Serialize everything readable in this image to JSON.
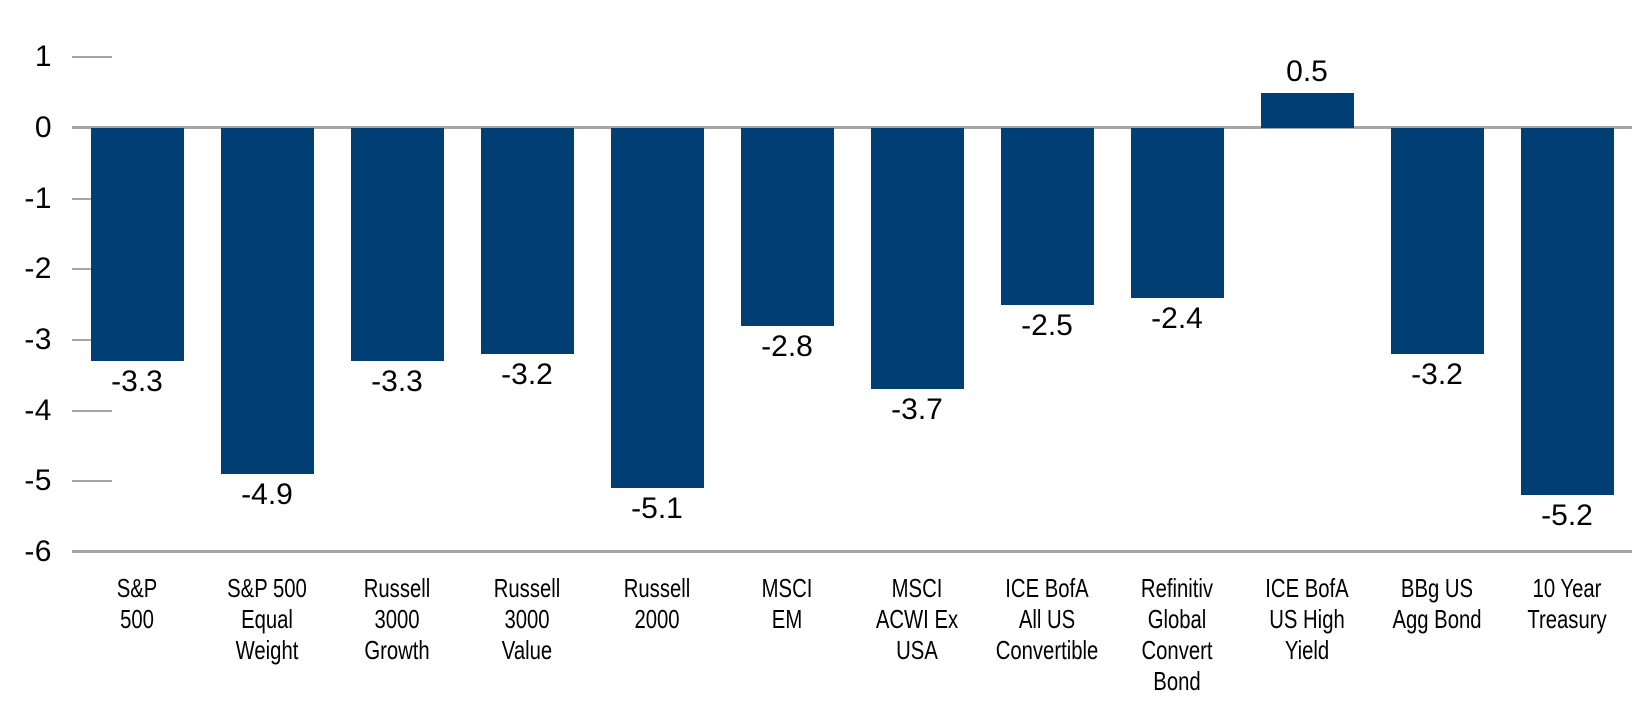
{
  "chart_data": {
    "type": "bar",
    "title": "",
    "xlabel": "",
    "ylabel": "",
    "categories": [
      "S&P\n500",
      "S&P 500\nEqual\nWeight",
      "Russell\n3000\nGrowth",
      "Russell\n3000\nValue",
      "Russell\n2000",
      "MSCI\nEM",
      "MSCI\nACWI Ex\nUSA",
      "ICE BofA\nAll US\nConvertible",
      "Refinitiv\nGlobal\nConvert\nBond",
      "ICE BofA\nUS High\nYield",
      "BBg US\nAgg Bond",
      "10 Year\nTreasury"
    ],
    "values": [
      -3.3,
      -4.9,
      -3.3,
      -3.2,
      -5.1,
      -2.8,
      -3.7,
      -2.5,
      -2.4,
      0.5,
      -3.2,
      -5.2
    ],
    "value_labels": [
      "-3.3",
      "-4.9",
      "-3.3",
      "-3.2",
      "-5.1",
      "-2.8",
      "-3.7",
      "-2.5",
      "-2.4",
      "0.5",
      "-3.2",
      "-5.2"
    ],
    "yticks": [
      1,
      0,
      -1,
      -2,
      -3,
      -4,
      -5,
      -6
    ],
    "ylim": [
      -6,
      1
    ],
    "grid": false,
    "legend": null,
    "data_labels_shown": true,
    "colors": {
      "bar": "#003E74",
      "axis_line": "#A6A6A6",
      "tick": "#A6A6A6",
      "text": "#000000",
      "background": "#FFFFFF"
    }
  }
}
